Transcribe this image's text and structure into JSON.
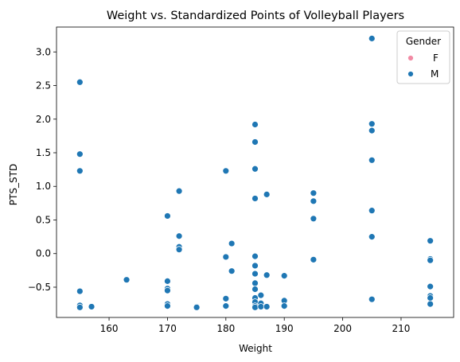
{
  "chart_data": {
    "type": "scatter",
    "title": "Weight vs. Standardized Points of Volleyball Players",
    "xlabel": "Weight",
    "ylabel": "PTS_STD",
    "xlim": [
      151.0,
      219.0
    ],
    "ylim": [
      -0.95,
      3.37
    ],
    "xticks": [
      160,
      170,
      180,
      190,
      200,
      210
    ],
    "yticks": [
      -0.5,
      0.0,
      0.5,
      1.0,
      1.5,
      2.0,
      2.5,
      3.0
    ],
    "grid": false,
    "legend": {
      "title": "Gender",
      "position": "top-right",
      "entries": [
        {
          "name": "F",
          "color": "#f28aa4"
        },
        {
          "name": "M",
          "color": "#1f77b4"
        }
      ]
    },
    "series": [
      {
        "name": "M",
        "color": "#1f77b4",
        "points": [
          [
            155,
            2.55
          ],
          [
            155,
            1.48
          ],
          [
            155,
            1.23
          ],
          [
            155,
            -0.56
          ],
          [
            155,
            -0.77
          ],
          [
            155,
            -0.8
          ],
          [
            157,
            -0.79
          ],
          [
            163,
            -0.39
          ],
          [
            170,
            0.56
          ],
          [
            170,
            -0.41
          ],
          [
            170,
            -0.52
          ],
          [
            170,
            -0.55
          ],
          [
            170,
            -0.75
          ],
          [
            170,
            -0.78
          ],
          [
            172,
            0.93
          ],
          [
            172,
            0.26
          ],
          [
            172,
            0.1
          ],
          [
            172,
            0.06
          ],
          [
            175,
            -0.79
          ],
          [
            175,
            -0.8
          ],
          [
            180,
            1.23
          ],
          [
            180,
            -0.05
          ],
          [
            180,
            -0.67
          ],
          [
            180,
            -0.78
          ],
          [
            181,
            0.15
          ],
          [
            181,
            -0.26
          ],
          [
            185,
            1.92
          ],
          [
            185,
            1.66
          ],
          [
            185,
            1.26
          ],
          [
            185,
            0.82
          ],
          [
            185,
            -0.04
          ],
          [
            185,
            -0.18
          ],
          [
            185,
            -0.3
          ],
          [
            185,
            -0.44
          ],
          [
            185,
            -0.53
          ],
          [
            185,
            -0.66
          ],
          [
            185,
            -0.72
          ],
          [
            185,
            -0.78
          ],
          [
            185,
            -0.8
          ],
          [
            186,
            -0.62
          ],
          [
            186,
            -0.74
          ],
          [
            186,
            -0.79
          ],
          [
            187,
            0.88
          ],
          [
            187,
            -0.32
          ],
          [
            187,
            -0.79
          ],
          [
            190,
            -0.33
          ],
          [
            190,
            -0.7
          ],
          [
            190,
            -0.78
          ],
          [
            195,
            0.9
          ],
          [
            195,
            0.78
          ],
          [
            195,
            0.52
          ],
          [
            195,
            -0.09
          ],
          [
            205,
            3.2
          ],
          [
            205,
            1.93
          ],
          [
            205,
            1.83
          ],
          [
            205,
            1.39
          ],
          [
            205,
            0.64
          ],
          [
            205,
            0.25
          ],
          [
            205,
            -0.68
          ],
          [
            215,
            0.19
          ],
          [
            215,
            -0.08
          ],
          [
            215,
            -0.1
          ],
          [
            215,
            -0.49
          ],
          [
            215,
            -0.63
          ],
          [
            215,
            -0.66
          ],
          [
            215,
            -0.75
          ]
        ]
      }
    ]
  }
}
